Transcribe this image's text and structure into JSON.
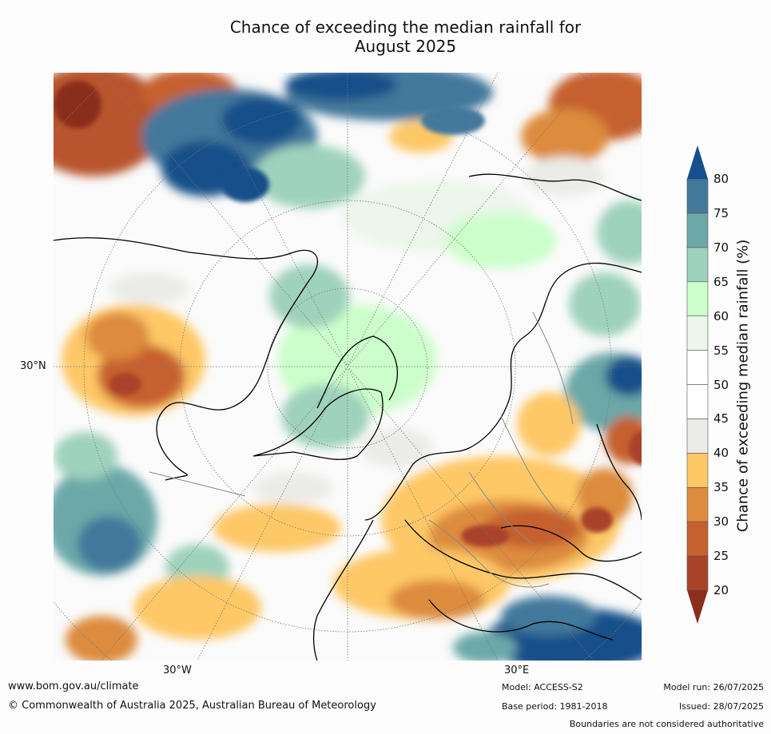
{
  "title_line1": "Chance of exceeding the median rainfall for",
  "title_line2": "August 2025",
  "map": {
    "lat_label": "30°N",
    "lon_labels": [
      "30°W",
      "30°E"
    ]
  },
  "colorbar": {
    "label": "Chance of exceeding median rainfall (%)",
    "ticks": [
      "20",
      "25",
      "30",
      "35",
      "40",
      "45",
      "50",
      "55",
      "60",
      "65",
      "70",
      "75",
      "80"
    ],
    "colors": [
      "#a8432a",
      "#c6612f",
      "#dd8b3e",
      "#fec866",
      "#ebebe7",
      "#ffffff",
      "#ffffff",
      "#ecf6ea",
      "#ccfecb",
      "#9fd2bc",
      "#6ca8a8",
      "#43789b",
      "#194f89"
    ],
    "under_color": "#8a2e1e",
    "over_color": "#154f8c"
  },
  "footer": {
    "website": "www.bom.gov.au/climate",
    "copyright": "© Commonwealth of Australia 2025, Australian Bureau of Meteorology",
    "model": "Model: ACCESS-S2",
    "base_period": "Base period: 1981-2018",
    "model_run": "Model run: 26/07/2025",
    "issued": "Issued: 28/07/2025",
    "disclaimer": "Boundaries are not considered authoritative"
  }
}
